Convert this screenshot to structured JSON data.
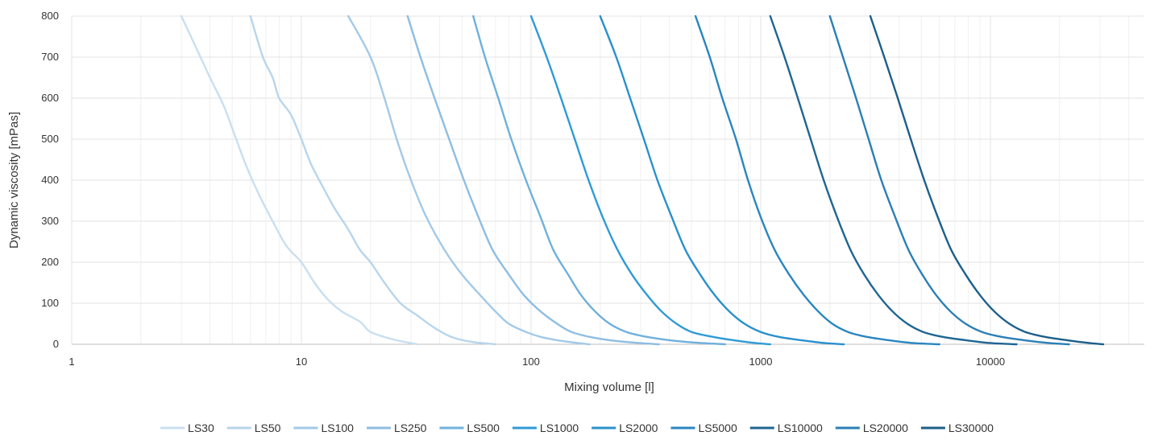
{
  "chart_data": {
    "type": "line",
    "title": "",
    "xlabel": "Mixing volume [l]",
    "ylabel": "Dynamic viscosity [mPas]",
    "x_scale": "log",
    "xlim": [
      1,
      50000
    ],
    "ylim": [
      0,
      800
    ],
    "x_ticks": [
      1,
      10,
      100,
      1000,
      10000
    ],
    "x_tick_labels": [
      "1",
      "10",
      "100",
      "1000",
      "10000"
    ],
    "y_ticks": [
      0,
      100,
      200,
      300,
      400,
      500,
      600,
      700,
      800
    ],
    "y_tick_labels": [
      "0",
      "100",
      "200",
      "300",
      "400",
      "500",
      "600",
      "700",
      "800"
    ],
    "grid": true,
    "legend_position": "bottom",
    "series": [
      {
        "name": "LS30",
        "color": "#c9dff0",
        "points": [
          [
            3.0,
            800
          ],
          [
            3.5,
            720
          ],
          [
            4.0,
            650
          ],
          [
            4.6,
            580
          ],
          [
            5.2,
            500
          ],
          [
            5.8,
            430
          ],
          [
            6.6,
            360
          ],
          [
            7.5,
            300
          ],
          [
            8.6,
            240
          ],
          [
            10,
            200
          ],
          [
            11.4,
            150
          ],
          [
            13,
            110
          ],
          [
            15,
            80
          ],
          [
            18,
            55
          ],
          [
            20,
            30
          ],
          [
            25,
            12
          ],
          [
            30,
            3
          ],
          [
            32,
            0
          ]
        ]
      },
      {
        "name": "LS50",
        "color": "#b8d5ec",
        "points": [
          [
            6.0,
            800
          ],
          [
            6.8,
            700
          ],
          [
            7.5,
            650
          ],
          [
            8.0,
            600
          ],
          [
            9,
            560
          ],
          [
            10,
            500
          ],
          [
            11,
            440
          ],
          [
            12.5,
            380
          ],
          [
            14,
            330
          ],
          [
            16,
            280
          ],
          [
            18,
            230
          ],
          [
            20,
            200
          ],
          [
            23,
            150
          ],
          [
            27,
            100
          ],
          [
            32,
            70
          ],
          [
            38,
            40
          ],
          [
            45,
            18
          ],
          [
            55,
            6
          ],
          [
            70,
            0
          ]
        ]
      },
      {
        "name": "LS100",
        "color": "#a3c9e7",
        "points": [
          [
            16,
            800
          ],
          [
            20,
            700
          ],
          [
            23,
            600
          ],
          [
            26,
            500
          ],
          [
            30,
            400
          ],
          [
            35,
            310
          ],
          [
            42,
            230
          ],
          [
            50,
            170
          ],
          [
            60,
            120
          ],
          [
            70,
            80
          ],
          [
            80,
            50
          ],
          [
            95,
            30
          ],
          [
            110,
            18
          ],
          [
            130,
            10
          ],
          [
            160,
            3
          ],
          [
            180,
            0
          ]
        ]
      },
      {
        "name": "LS250",
        "color": "#8ebde2",
        "points": [
          [
            29,
            800
          ],
          [
            33,
            700
          ],
          [
            38,
            600
          ],
          [
            44,
            500
          ],
          [
            51,
            400
          ],
          [
            59,
            310
          ],
          [
            68,
            230
          ],
          [
            80,
            170
          ],
          [
            93,
            120
          ],
          [
            110,
            80
          ],
          [
            130,
            50
          ],
          [
            150,
            30
          ],
          [
            180,
            18
          ],
          [
            220,
            10
          ],
          [
            280,
            4
          ],
          [
            360,
            0
          ]
        ]
      },
      {
        "name": "LS500",
        "color": "#6fb0dc",
        "points": [
          [
            56,
            800
          ],
          [
            63,
            700
          ],
          [
            72,
            600
          ],
          [
            82,
            500
          ],
          [
            95,
            400
          ],
          [
            110,
            310
          ],
          [
            125,
            230
          ],
          [
            145,
            170
          ],
          [
            165,
            120
          ],
          [
            190,
            80
          ],
          [
            220,
            50
          ],
          [
            260,
            30
          ],
          [
            320,
            18
          ],
          [
            400,
            10
          ],
          [
            520,
            4
          ],
          [
            700,
            0
          ]
        ]
      },
      {
        "name": "LS1000",
        "color": "#2f9ad6",
        "points": [
          [
            100,
            800
          ],
          [
            117,
            700
          ],
          [
            135,
            600
          ],
          [
            155,
            500
          ],
          [
            178,
            400
          ],
          [
            205,
            310
          ],
          [
            238,
            230
          ],
          [
            275,
            170
          ],
          [
            320,
            120
          ],
          [
            370,
            80
          ],
          [
            430,
            50
          ],
          [
            500,
            30
          ],
          [
            620,
            18
          ],
          [
            760,
            10
          ],
          [
            950,
            3
          ],
          [
            1100,
            0
          ]
        ]
      },
      {
        "name": "LS2000",
        "color": "#2a90cc",
        "points": [
          [
            200,
            800
          ],
          [
            235,
            700
          ],
          [
            270,
            600
          ],
          [
            310,
            500
          ],
          [
            355,
            400
          ],
          [
            410,
            310
          ],
          [
            470,
            230
          ],
          [
            545,
            170
          ],
          [
            630,
            120
          ],
          [
            730,
            80
          ],
          [
            850,
            50
          ],
          [
            1000,
            30
          ],
          [
            1200,
            18
          ],
          [
            1500,
            10
          ],
          [
            1900,
            3
          ],
          [
            2300,
            0
          ]
        ]
      },
      {
        "name": "LS5000",
        "color": "#2a86c0",
        "points": [
          [
            520,
            800
          ],
          [
            600,
            700
          ],
          [
            680,
            600
          ],
          [
            780,
            500
          ],
          [
            880,
            400
          ],
          [
            1000,
            310
          ],
          [
            1150,
            230
          ],
          [
            1330,
            170
          ],
          [
            1540,
            120
          ],
          [
            1780,
            80
          ],
          [
            2050,
            50
          ],
          [
            2400,
            30
          ],
          [
            2900,
            18
          ],
          [
            3600,
            10
          ],
          [
            4600,
            3
          ],
          [
            6000,
            0
          ]
        ]
      },
      {
        "name": "LS10000",
        "color": "#1f6592",
        "points": [
          [
            1100,
            800
          ],
          [
            1270,
            700
          ],
          [
            1450,
            600
          ],
          [
            1650,
            500
          ],
          [
            1880,
            400
          ],
          [
            2150,
            310
          ],
          [
            2460,
            230
          ],
          [
            2820,
            170
          ],
          [
            3250,
            120
          ],
          [
            3750,
            80
          ],
          [
            4350,
            50
          ],
          [
            5100,
            30
          ],
          [
            6200,
            18
          ],
          [
            7800,
            10
          ],
          [
            10000,
            3
          ],
          [
            13000,
            0
          ]
        ]
      },
      {
        "name": "LS20000",
        "color": "#2a7fb5",
        "points": [
          [
            2000,
            800
          ],
          [
            2280,
            700
          ],
          [
            2600,
            600
          ],
          [
            2950,
            500
          ],
          [
            3350,
            400
          ],
          [
            3850,
            310
          ],
          [
            4400,
            230
          ],
          [
            5050,
            170
          ],
          [
            5800,
            120
          ],
          [
            6700,
            80
          ],
          [
            7800,
            50
          ],
          [
            9200,
            30
          ],
          [
            11200,
            18
          ],
          [
            14000,
            10
          ],
          [
            18000,
            3
          ],
          [
            22000,
            0
          ]
        ]
      },
      {
        "name": "LS30000",
        "color": "#1d5f8a",
        "points": [
          [
            3000,
            800
          ],
          [
            3450,
            700
          ],
          [
            3950,
            600
          ],
          [
            4500,
            500
          ],
          [
            5150,
            400
          ],
          [
            5900,
            310
          ],
          [
            6750,
            230
          ],
          [
            7800,
            170
          ],
          [
            9000,
            120
          ],
          [
            10400,
            80
          ],
          [
            12100,
            50
          ],
          [
            14200,
            30
          ],
          [
            17300,
            18
          ],
          [
            21500,
            10
          ],
          [
            27000,
            3
          ],
          [
            31000,
            0
          ]
        ]
      }
    ]
  }
}
